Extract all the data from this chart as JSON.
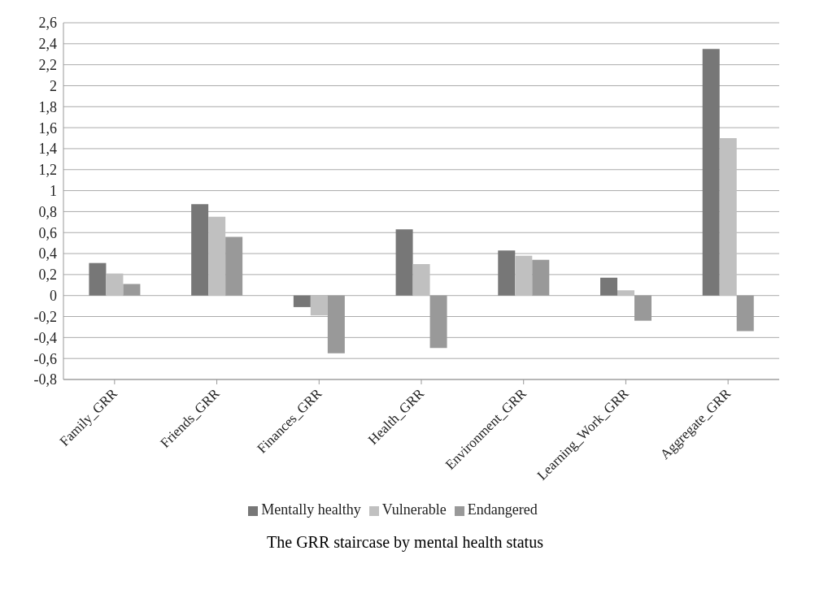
{
  "chart_data": {
    "type": "bar",
    "title": "The GRR staircase by mental health status",
    "categories": [
      "Family_GRR",
      "Friends_GRR",
      "Finances_GRR",
      "Health_GRR",
      "Environment_GRR",
      "Learning_Work_GRR",
      "Aggregate_GRR"
    ],
    "series": [
      {
        "name": "Mentally healthy",
        "color": "#777777",
        "values": [
          0.31,
          0.87,
          -0.11,
          0.63,
          0.43,
          0.17,
          2.35
        ]
      },
      {
        "name": "Vulnerable",
        "color": "#c0c0c0",
        "values": [
          0.21,
          0.75,
          -0.19,
          0.3,
          0.38,
          0.05,
          1.5
        ]
      },
      {
        "name": "Endangered",
        "color": "#999999",
        "values": [
          0.11,
          0.56,
          -0.55,
          -0.5,
          0.34,
          -0.24,
          -0.34
        ]
      }
    ],
    "ylim": [
      -0.8,
      2.6
    ],
    "yticks": [
      {
        "value": -0.8,
        "label": "-0,8"
      },
      {
        "value": -0.6,
        "label": "-0,6"
      },
      {
        "value": -0.4,
        "label": "-0,4"
      },
      {
        "value": -0.2,
        "label": "-0,2"
      },
      0,
      {
        "value": 0.2,
        "label": "0,2"
      },
      {
        "value": 0.4,
        "label": "0,4"
      },
      {
        "value": 0.6,
        "label": "0,6"
      },
      {
        "value": 0.8,
        "label": "0,8"
      },
      1,
      {
        "value": 1.2,
        "label": "1,2"
      },
      {
        "value": 1.4,
        "label": "1,4"
      },
      {
        "value": 1.6,
        "label": "1,6"
      },
      {
        "value": 1.8,
        "label": "1,8"
      },
      2,
      {
        "value": 2.2,
        "label": "2,2"
      },
      {
        "value": 2.4,
        "label": "2,4"
      },
      {
        "value": 2.6,
        "label": "2,6"
      }
    ],
    "grid": "y",
    "legend": "bottom"
  }
}
